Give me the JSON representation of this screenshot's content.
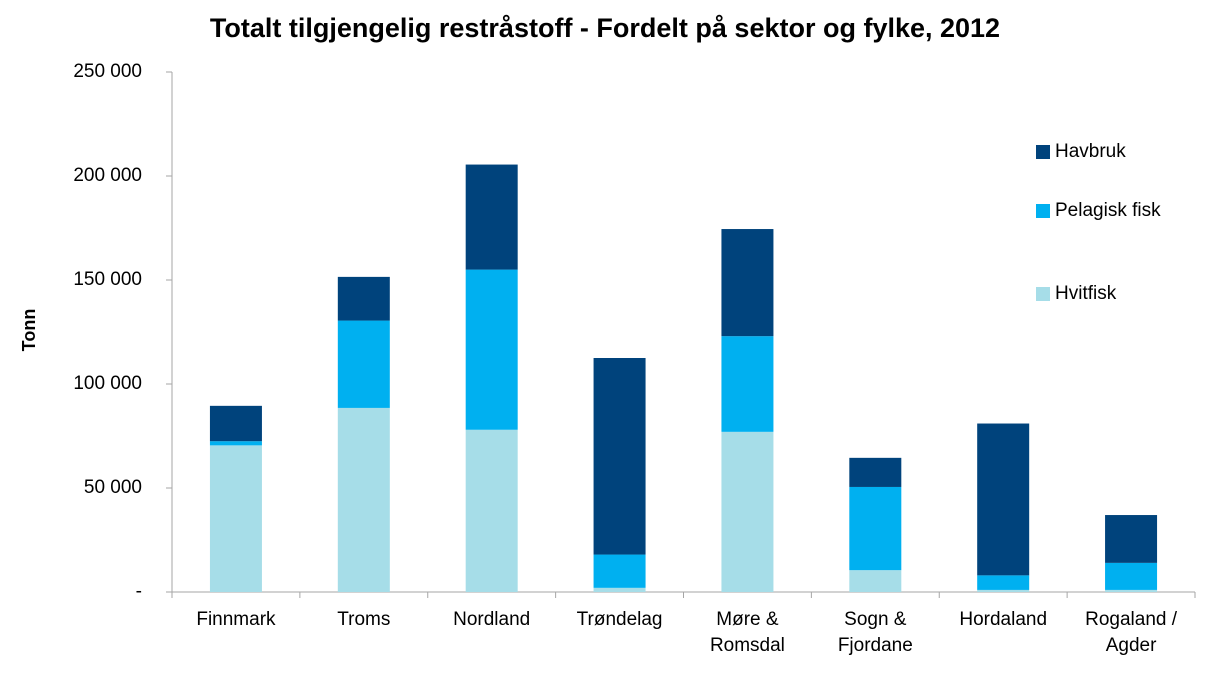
{
  "chart_data": {
    "type": "stacked_bar",
    "title": "Totalt tilgjengelig restråstoff - Fordelt på sektor og fylke, 2012",
    "y_label": "Tonn",
    "categories": [
      "Finnmark",
      "Troms",
      "Nordland",
      "Trøndelag",
      "Møre & Romsdal",
      "Sogn & Fjordane",
      "Hordaland",
      "Rogaland / Agder"
    ],
    "series": [
      {
        "name": "Hvitfisk",
        "color": "#a6dde8",
        "values": [
          70500,
          88500,
          78000,
          2000,
          77000,
          10500,
          1000,
          1000
        ]
      },
      {
        "name": "Pelagisk fisk",
        "color": "#00b0f0",
        "values": [
          2000,
          42000,
          77000,
          16000,
          46000,
          40000,
          7000,
          13000
        ]
      },
      {
        "name": "Havbruk",
        "color": "#00437c",
        "values": [
          17000,
          21000,
          50500,
          94500,
          51500,
          14000,
          73000,
          23000
        ]
      }
    ],
    "ylim": [
      0,
      250000
    ],
    "yticks": [
      {
        "value": 0,
        "label": "-"
      },
      {
        "value": 50000,
        "label": "50 000"
      },
      {
        "value": 100000,
        "label": "100 000"
      },
      {
        "value": 150000,
        "label": "150 000"
      },
      {
        "value": 200000,
        "label": "200 000"
      },
      {
        "value": 250000,
        "label": "250 000"
      }
    ],
    "grid": false,
    "legend": "right"
  }
}
